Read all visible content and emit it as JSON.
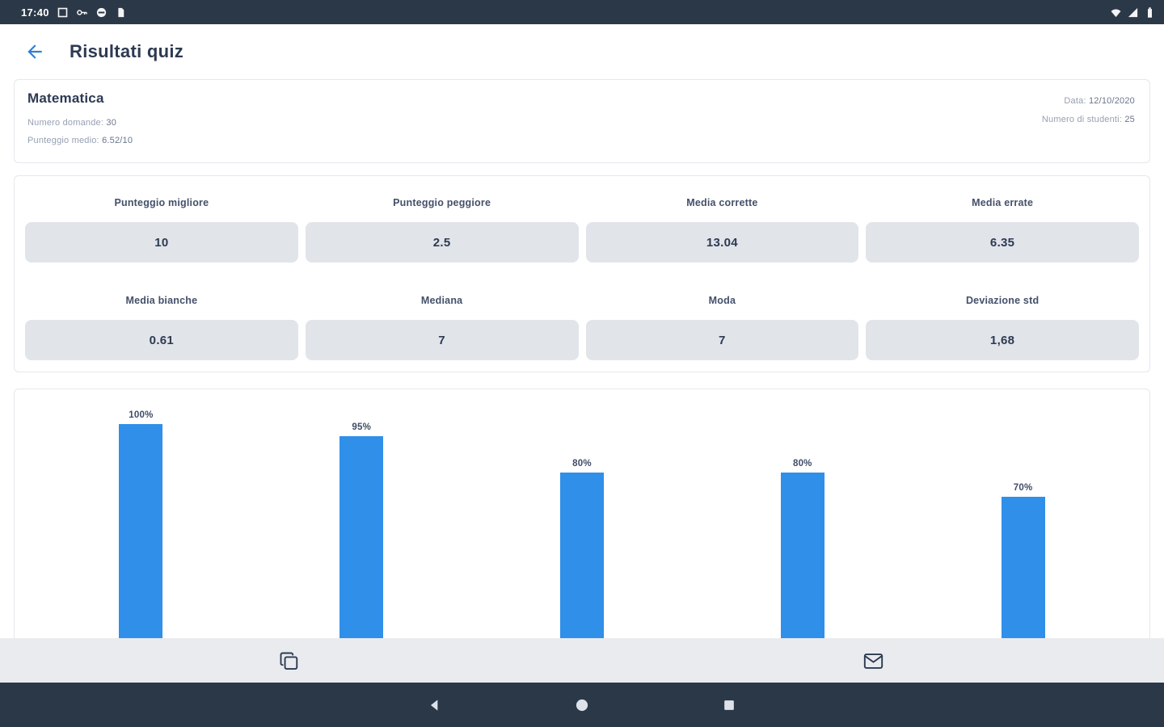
{
  "colors": {
    "navy": "#2b3848",
    "accent_blue": "#2e7fd6",
    "bar_blue": "#2f8fe9",
    "stat_box_bg": "#e1e4e9",
    "bottom_bar_bg": "#e9ebee"
  },
  "status_bar": {
    "time": "17:40",
    "left_icons": [
      "screenshot-icon",
      "vpn-key-icon",
      "dnd-icon",
      "sim-icon"
    ],
    "right_icons": [
      "wifi-icon",
      "signal-icon",
      "battery-icon"
    ]
  },
  "header": {
    "title": "Risultati quiz"
  },
  "quiz_info": {
    "subject": "Matematica",
    "left_lines": [
      {
        "label": "Numero domande:",
        "value": "30"
      },
      {
        "label": "Punteggio medio:",
        "value": "6.52/10"
      }
    ],
    "right_lines": [
      {
        "label": "Data:",
        "value": "12/10/2020"
      },
      {
        "label": "Numero di studenti:",
        "value": "25"
      }
    ]
  },
  "stats": [
    {
      "label": "Punteggio migliore",
      "value": "10"
    },
    {
      "label": "Punteggio peggiore",
      "value": "2.5"
    },
    {
      "label": "Media corrette",
      "value": "13.04"
    },
    {
      "label": "Media errate",
      "value": "6.35"
    },
    {
      "label": "Media bianche",
      "value": "0.61"
    },
    {
      "label": "Mediana",
      "value": "7"
    },
    {
      "label": "Moda",
      "value": "7"
    },
    {
      "label": "Deviazione std",
      "value": "1,68"
    }
  ],
  "chart_data": {
    "type": "bar",
    "values": [
      100,
      95,
      80,
      80,
      70
    ],
    "labels": [
      "100%",
      "95%",
      "80%",
      "80%",
      "70%"
    ],
    "ylim": [
      0,
      100
    ],
    "bar_color": "#2f8fe9",
    "grid": false,
    "legend": "none"
  },
  "bottom_bar": {
    "copy_button": "copy-results",
    "email_button": "email-results"
  },
  "nav_bar": {
    "buttons": [
      "back",
      "home",
      "recents"
    ]
  }
}
